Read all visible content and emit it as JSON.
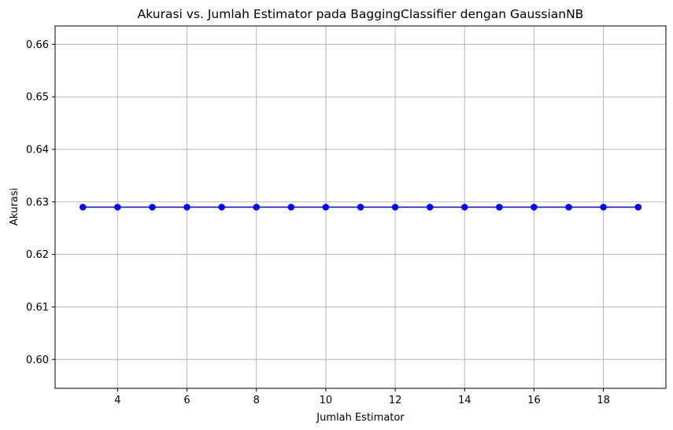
{
  "chart_data": {
    "type": "line",
    "title": "Akurasi vs. Jumlah Estimator pada BaggingClassifier dengan GaussianNB",
    "xlabel": "Jumlah Estimator",
    "ylabel": "Akurasi",
    "x": [
      3,
      4,
      5,
      6,
      7,
      8,
      9,
      10,
      11,
      12,
      13,
      14,
      15,
      16,
      17,
      18,
      19
    ],
    "series": [
      {
        "values": [
          0.629,
          0.629,
          0.629,
          0.629,
          0.629,
          0.629,
          0.629,
          0.629,
          0.629,
          0.629,
          0.629,
          0.629,
          0.629,
          0.629,
          0.629,
          0.629,
          0.629
        ],
        "color": "#0000ff",
        "marker": "circle"
      }
    ],
    "xlim": [
      2.2,
      19.8
    ],
    "ylim": [
      0.5945,
      0.6635
    ],
    "xticks": [
      4,
      6,
      8,
      10,
      12,
      14,
      16,
      18
    ],
    "xtick_labels": [
      "4",
      "6",
      "8",
      "10",
      "12",
      "14",
      "16",
      "18"
    ],
    "yticks": [
      0.6,
      0.61,
      0.62,
      0.63,
      0.64,
      0.65,
      0.66
    ],
    "ytick_labels": [
      "0.60",
      "0.61",
      "0.62",
      "0.63",
      "0.64",
      "0.65",
      "0.66"
    ],
    "grid": true,
    "grid_color": "#b0b0b0"
  }
}
